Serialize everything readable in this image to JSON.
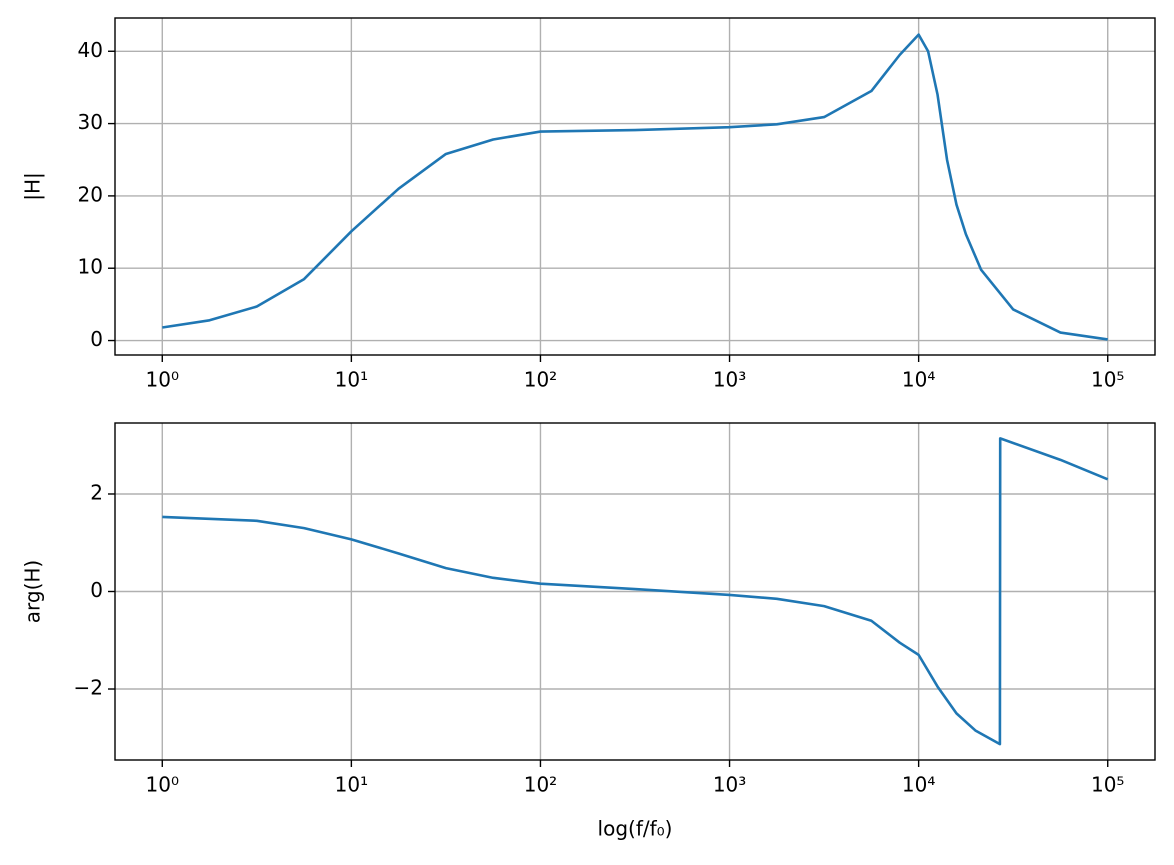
{
  "chart_data": [
    {
      "type": "line",
      "ylabel": "|H|",
      "xscale": "log",
      "grid": true,
      "xlim": [
        0.5623,
        177828
      ],
      "ylim": [
        -2.0,
        44.6
      ],
      "xticks": [
        {
          "value": 1,
          "label": "10⁰"
        },
        {
          "value": 10,
          "label": "10¹"
        },
        {
          "value": 100,
          "label": "10²"
        },
        {
          "value": 1000,
          "label": "10³"
        },
        {
          "value": 10000,
          "label": "10⁴"
        },
        {
          "value": 100000,
          "label": "10⁵"
        }
      ],
      "yticks": [
        0,
        10,
        20,
        30,
        40
      ],
      "x": [
        1,
        1.778,
        3.162,
        5.623,
        10,
        17.78,
        31.62,
        56.23,
        100,
        316.2,
        1000,
        1778,
        3162,
        5623,
        7943,
        10000,
        11220,
        12590,
        14130,
        15850,
        17780,
        21380,
        31620,
        56230,
        100000
      ],
      "series": [
        {
          "color": "#1f77b4",
          "values": [
            1.8,
            2.8,
            4.7,
            8.5,
            15.1,
            21,
            25.8,
            27.8,
            28.9,
            29.1,
            29.5,
            29.9,
            30.9,
            34.5,
            39.5,
            42.3,
            40,
            34,
            25,
            18.8,
            14.7,
            9.8,
            4.3,
            1.1,
            0.15
          ]
        }
      ]
    },
    {
      "type": "line",
      "ylabel": "arg(H)",
      "xlabel": "log(f/f₀)",
      "xscale": "log",
      "grid": true,
      "xlim": [
        0.5623,
        177828
      ],
      "ylim": [
        -3.456,
        3.456
      ],
      "xticks": [
        {
          "value": 1,
          "label": "10⁰"
        },
        {
          "value": 10,
          "label": "10¹"
        },
        {
          "value": 100,
          "label": "10²"
        },
        {
          "value": 1000,
          "label": "10³"
        },
        {
          "value": 10000,
          "label": "10⁴"
        },
        {
          "value": 100000,
          "label": "10⁵"
        }
      ],
      "yticks": [
        {
          "value": -2,
          "label": "−2"
        },
        0,
        2
      ],
      "x": [
        1,
        3.162,
        5.623,
        10,
        17.78,
        31.62,
        56.23,
        100,
        316.2,
        1000,
        1778,
        3162,
        5623,
        7943,
        10000,
        12590,
        15850,
        19950,
        26900,
        27000,
        56230,
        100000
      ],
      "series": [
        {
          "color": "#1f77b4",
          "values": [
            1.53,
            1.45,
            1.3,
            1.07,
            0.78,
            0.48,
            0.28,
            0.16,
            0.05,
            -0.07,
            -0.15,
            -0.3,
            -0.6,
            -1.05,
            -1.3,
            -1.95,
            -2.5,
            -2.85,
            -3.13,
            3.14,
            2.7,
            2.3
          ]
        }
      ]
    }
  ]
}
